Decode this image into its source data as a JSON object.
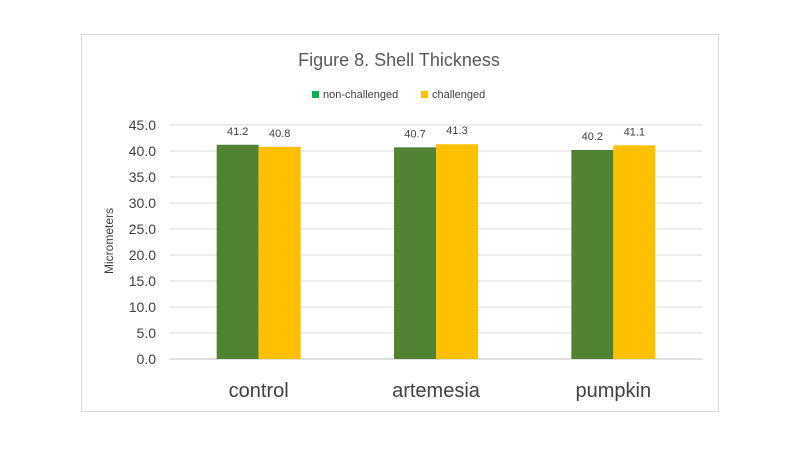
{
  "chart_data": {
    "type": "bar",
    "title": "Figure 8.  Shell Thickness",
    "xlabel": "",
    "ylabel": "Micrometers",
    "categories": [
      "control",
      "artemesia",
      "pumpkin"
    ],
    "series": [
      {
        "name": "non-challenged",
        "color": "#548235",
        "values": [
          41.2,
          40.7,
          40.2
        ],
        "labels": [
          "41.2",
          "40.7",
          "40.2"
        ]
      },
      {
        "name": "challenged",
        "color": "#ffc000",
        "values": [
          40.8,
          41.3,
          41.1
        ],
        "labels": [
          "40.8",
          "41.3",
          "41.1"
        ]
      }
    ],
    "ylim": [
      0,
      45
    ],
    "yticks": [
      "0.0",
      "5.0",
      "10.0",
      "15.0",
      "20.0",
      "25.0",
      "30.0",
      "35.0",
      "40.0",
      "45.0"
    ],
    "grid": true,
    "legend_position": "top",
    "legend_marker_colors": {
      "non-challenged": "#00b050",
      "challenged": "#ffc000"
    }
  }
}
